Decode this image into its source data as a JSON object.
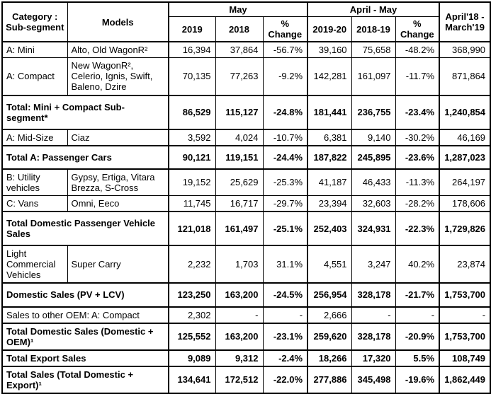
{
  "page": {
    "background_color": "#ffffff",
    "border_color": "#000000",
    "text_color": "#000000"
  },
  "table": {
    "header": {
      "category": "Category : Sub-segment",
      "models": "Models",
      "group_may": "May",
      "group_april_may": "April - May",
      "fy": "April'18 - March'19",
      "may_cols": [
        "2019",
        "2018",
        "%\nChange"
      ],
      "april_may_cols": [
        "2019-20",
        "2018-19",
        "%\nChange"
      ]
    },
    "rows": [
      {
        "kind": "data",
        "category": "A: Mini",
        "models": "Alto, Old WagonR²",
        "values": [
          "16,394",
          "37,864",
          "-56.7%",
          "39,160",
          "75,658",
          "-48.2%",
          "368,990"
        ]
      },
      {
        "kind": "data",
        "category": "A: Compact",
        "models": "New WagonR², Celerio, Ignis, Swift, Baleno, Dzire",
        "values": [
          "70,135",
          "77,263",
          "-9.2%",
          "142,281",
          "161,097",
          "-11.7%",
          "871,864"
        ]
      },
      {
        "kind": "total",
        "label": "Total: Mini + Compact Sub-segment*",
        "values": [
          "86,529",
          "115,127",
          "-24.8%",
          "181,441",
          "236,755",
          "-23.4%",
          "1,240,854"
        ]
      },
      {
        "kind": "data",
        "category": "A: Mid-Size",
        "models": "Ciaz",
        "values": [
          "3,592",
          "4,024",
          "-10.7%",
          "6,381",
          "9,140",
          "-30.2%",
          "46,169"
        ]
      },
      {
        "kind": "total",
        "label": "Total A: Passenger Cars",
        "values": [
          "90,121",
          "119,151",
          "-24.4%",
          "187,822",
          "245,895",
          "-23.6%",
          "1,287,023"
        ]
      },
      {
        "kind": "data",
        "category": "B: Utility vehicles",
        "models": "Gypsy, Ertiga, Vitara Brezza, S-Cross",
        "values": [
          "19,152",
          "25,629",
          "-25.3%",
          "41,187",
          "46,433",
          "-11.3%",
          "264,197"
        ]
      },
      {
        "kind": "data",
        "category": "C: Vans",
        "models": "Omni, Eeco",
        "values": [
          "11,745",
          "16,717",
          "-29.7%",
          "23,394",
          "32,603",
          "-28.2%",
          "178,606"
        ]
      },
      {
        "kind": "total",
        "label": "Total Domestic Passenger Vehicle Sales",
        "values": [
          "121,018",
          "161,497",
          "-25.1%",
          "252,403",
          "324,931",
          "-22.3%",
          "1,729,826"
        ]
      },
      {
        "kind": "data",
        "category": "Light Commercial Vehicles",
        "models": "Super Carry",
        "values": [
          "2,232",
          "1,703",
          "31.1%",
          "4,551",
          "3,247",
          "40.2%",
          "23,874"
        ]
      },
      {
        "kind": "total",
        "label": "Domestic Sales (PV + LCV)",
        "values": [
          "123,250",
          "163,200",
          "-24.5%",
          "256,954",
          "328,178",
          "-21.7%",
          "1,753,700"
        ]
      },
      {
        "kind": "oem",
        "label": "Sales to other OEM: A: Compact",
        "values": [
          "2,302",
          "-",
          "-",
          "2,666",
          "-",
          "-",
          "-"
        ]
      },
      {
        "kind": "total-sm",
        "label": "Total Domestic Sales (Domestic + OEM)¹",
        "values": [
          "125,552",
          "163,200",
          "-23.1%",
          "259,620",
          "328,178",
          "-20.9%",
          "1,753,700"
        ]
      },
      {
        "kind": "total-sm",
        "label": "Total Export Sales",
        "values": [
          "9,089",
          "9,312",
          "-2.4%",
          "18,266",
          "17,320",
          "5.5%",
          "108,749"
        ]
      },
      {
        "kind": "total-sm",
        "label": "Total Sales (Total Domestic + Export)¹",
        "values": [
          "134,641",
          "172,512",
          "-22.0%",
          "277,886",
          "345,498",
          "-19.6%",
          "1,862,449"
        ]
      }
    ]
  }
}
